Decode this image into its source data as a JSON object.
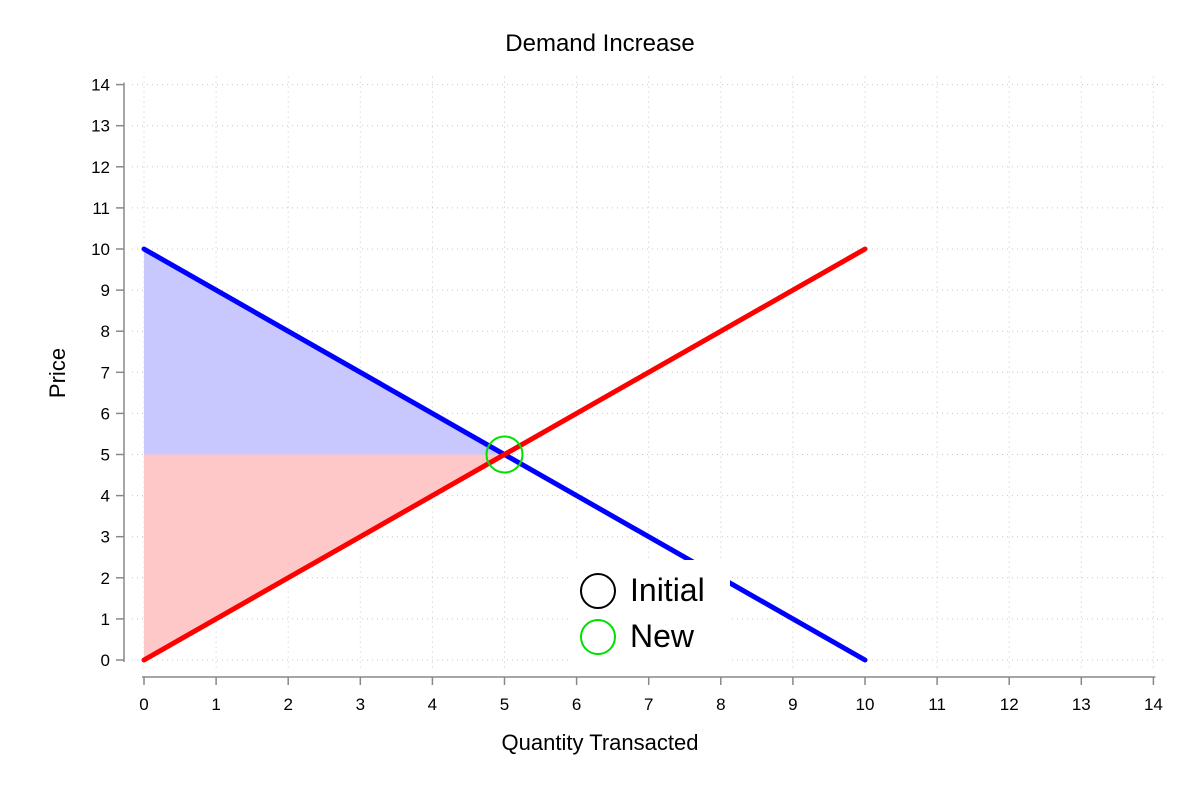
{
  "chart_data": {
    "type": "line",
    "title": "Demand Increase",
    "xlabel": "Quantity Transacted",
    "ylabel": "Price",
    "xlim": [
      0,
      14
    ],
    "ylim": [
      0,
      14
    ],
    "x_ticks": [
      0,
      1,
      2,
      3,
      4,
      5,
      6,
      7,
      8,
      9,
      10,
      11,
      12,
      13,
      14
    ],
    "y_ticks": [
      0,
      1,
      2,
      3,
      4,
      5,
      6,
      7,
      8,
      9,
      10,
      11,
      12,
      13,
      14
    ],
    "grid": true,
    "series": [
      {
        "role": "demand",
        "color": "#0000ff",
        "points": [
          [
            0,
            10
          ],
          [
            10,
            0
          ]
        ]
      },
      {
        "role": "supply",
        "color": "#ff0000",
        "points": [
          [
            0,
            0
          ],
          [
            10,
            10
          ]
        ]
      }
    ],
    "shaded_regions": [
      {
        "role": "consumer surplus",
        "color": "#c8c8ff",
        "polygon": [
          [
            0,
            5
          ],
          [
            0,
            10
          ],
          [
            5,
            5
          ]
        ]
      },
      {
        "role": "producer surplus",
        "color": "#ffc8c8",
        "polygon": [
          [
            0,
            0
          ],
          [
            0,
            5
          ],
          [
            5,
            5
          ]
        ]
      }
    ],
    "equilibria": [
      {
        "legend": "New",
        "x": 5,
        "y": 5,
        "color": "#00e000"
      }
    ],
    "legend": {
      "placement": "bottom-center",
      "items": [
        {
          "label": "Initial",
          "color": "#000000"
        },
        {
          "label": "New",
          "color": "#00e000"
        }
      ]
    }
  }
}
